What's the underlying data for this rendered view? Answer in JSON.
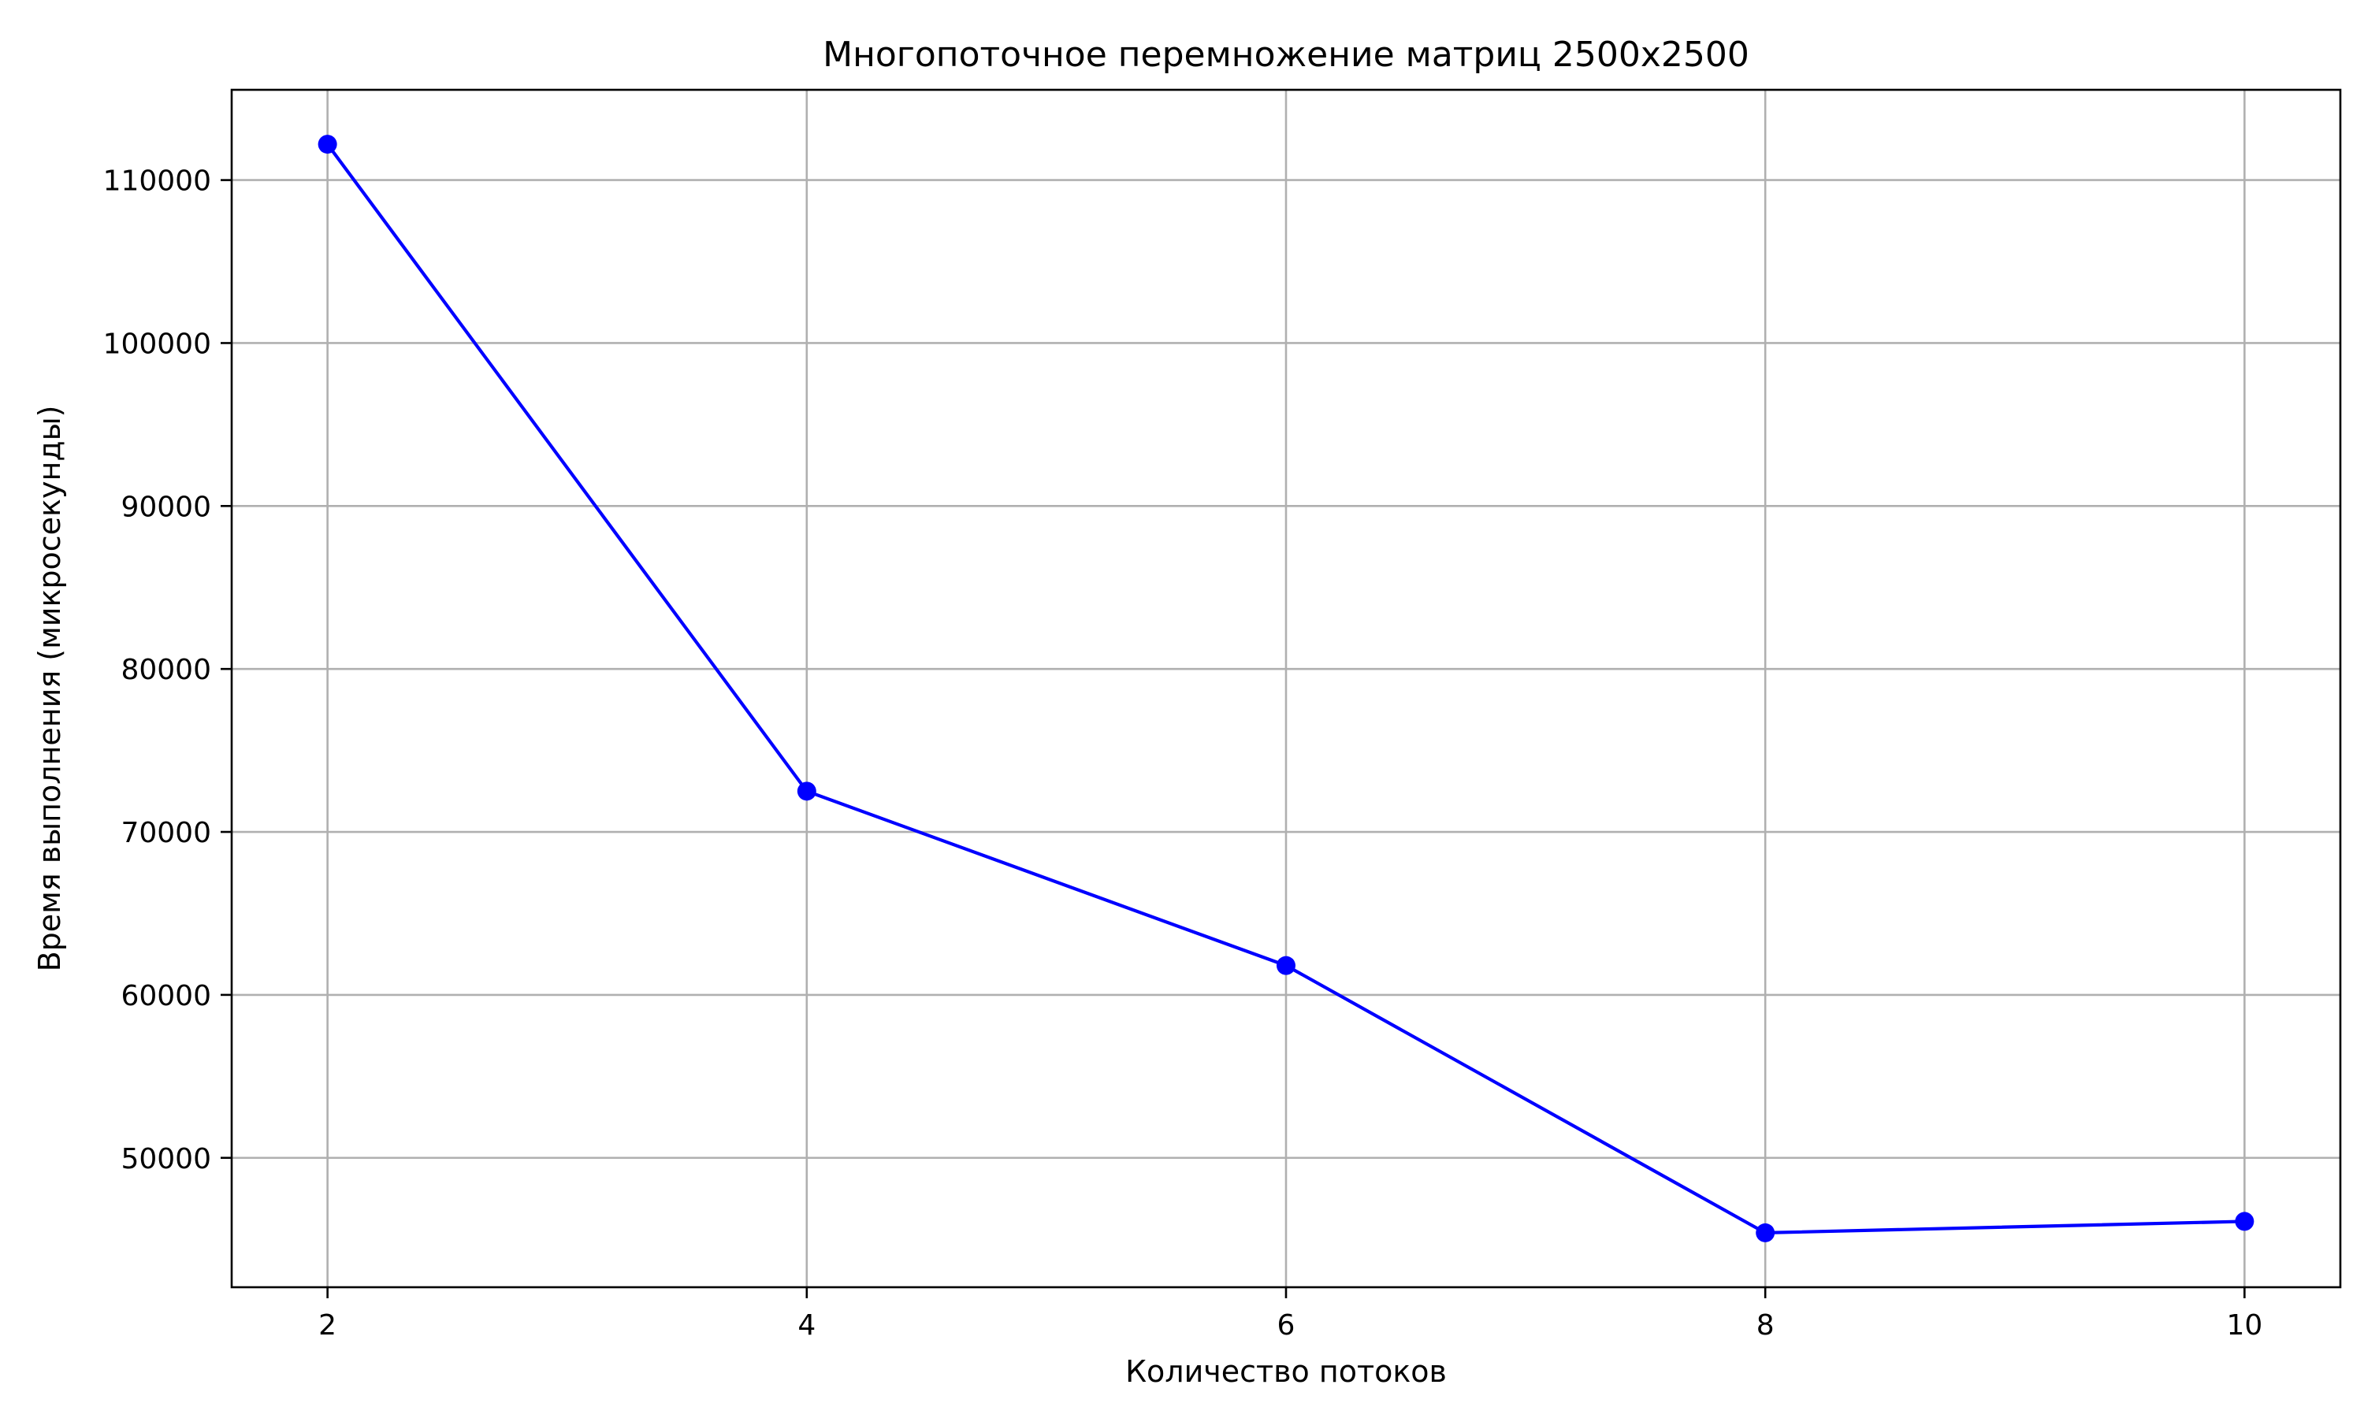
{
  "chart_data": {
    "type": "line",
    "title": "Многопоточное перемножение матриц 2500x2500",
    "xlabel": "Количество потоков",
    "ylabel": "Время выполнения (микросекунды)",
    "x": [
      2,
      4,
      6,
      8,
      10
    ],
    "series": [
      {
        "values": [
          112200,
          72500,
          61800,
          45400,
          46100
        ],
        "color": "#0000ff",
        "marker": "circle"
      }
    ],
    "xlim": [
      1.6,
      10.4
    ],
    "ylim": [
      42060,
      115540
    ],
    "xticks": [
      "2",
      "4",
      "6",
      "8",
      "10"
    ],
    "yticks": [
      "50000",
      "60000",
      "70000",
      "80000",
      "90000",
      "100000",
      "110000"
    ],
    "grid": true,
    "legend": "none"
  }
}
